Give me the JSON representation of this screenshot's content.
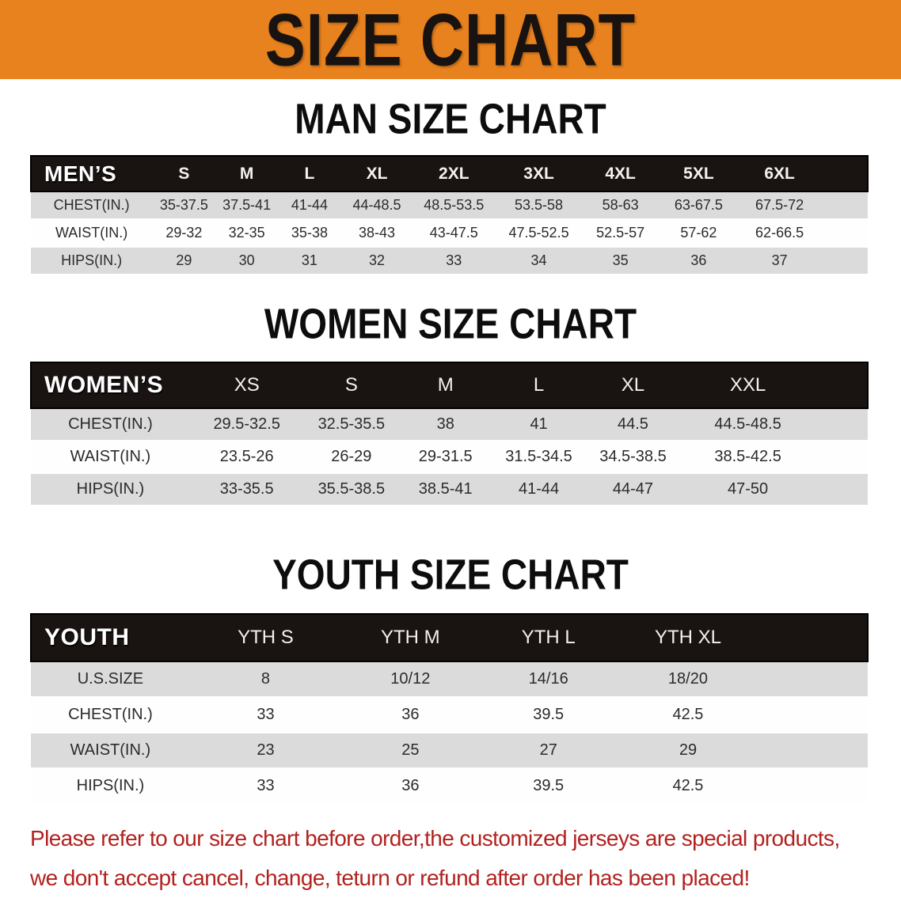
{
  "banner": {
    "title": "SIZE CHART",
    "bg_color": "#E8821E"
  },
  "sections": [
    {
      "heading": "MAN SIZE CHART",
      "table": {
        "label": "MEN’S",
        "columns": [
          "S",
          "M",
          "L",
          "XL",
          "2XL",
          "3XL",
          "4XL",
          "5XL",
          "6XL"
        ],
        "rows": [
          {
            "label": "CHEST(IN.)",
            "values": [
              "35-37.5",
              "37.5-41",
              "41-44",
              "44-48.5",
              "48.5-53.5",
              "53.5-58",
              "58-63",
              "63-67.5",
              "67.5-72"
            ]
          },
          {
            "label": "WAIST(IN.)",
            "values": [
              "29-32",
              "32-35",
              "35-38",
              "38-43",
              "43-47.5",
              "47.5-52.5",
              "52.5-57",
              "57-62",
              "62-66.5"
            ]
          },
          {
            "label": "HIPS(IN.)",
            "values": [
              "29",
              "30",
              "31",
              "32",
              "33",
              "34",
              "35",
              "36",
              "37"
            ]
          }
        ]
      }
    },
    {
      "heading": "WOMEN SIZE CHART",
      "table": {
        "label": "WOMEN’S",
        "columns": [
          "XS",
          "S",
          "M",
          "L",
          "XL",
          "XXL"
        ],
        "rows": [
          {
            "label": "CHEST(IN.)",
            "values": [
              "29.5-32.5",
              "32.5-35.5",
              "38",
              "41",
              "44.5",
              "44.5-48.5"
            ]
          },
          {
            "label": "WAIST(IN.)",
            "values": [
              "23.5-26",
              "26-29",
              "29-31.5",
              "31.5-34.5",
              "34.5-38.5",
              "38.5-42.5"
            ]
          },
          {
            "label": "HIPS(IN.)",
            "values": [
              "33-35.5",
              "35.5-38.5",
              "38.5-41",
              "41-44",
              "44-47",
              "47-50"
            ]
          }
        ]
      }
    },
    {
      "heading": "YOUTH SIZE CHART",
      "table": {
        "label": "YOUTH",
        "columns": [
          "YTH S",
          "YTH M",
          "YTH L",
          "YTH XL"
        ],
        "rows": [
          {
            "label": "U.S.SIZE",
            "values": [
              "8",
              "10/12",
              "14/16",
              "18/20"
            ]
          },
          {
            "label": "CHEST(IN.)",
            "values": [
              "33",
              "36",
              "39.5",
              "42.5"
            ]
          },
          {
            "label": "WAIST(IN.)",
            "values": [
              "23",
              "25",
              "27",
              "29"
            ]
          },
          {
            "label": "HIPS(IN.)",
            "values": [
              "33",
              "36",
              "39.5",
              "42.5"
            ]
          }
        ]
      }
    }
  ],
  "footer": {
    "line1": "Please refer to our size chart before order,the customized jerseys are special products,",
    "line2": "we don't accept cancel, change, teturn or refund after order has been placed!",
    "text_color": "#B1221F"
  }
}
